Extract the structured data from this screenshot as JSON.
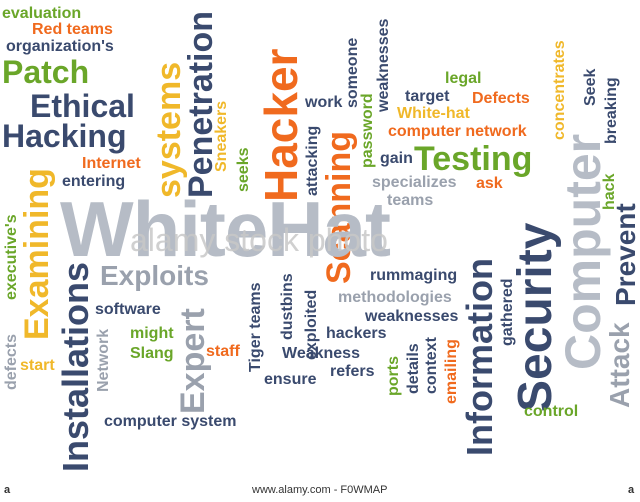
{
  "colors": {
    "navy": "#3a4a6e",
    "orange": "#f06a1e",
    "green": "#6aa629",
    "gray": "#9aa1ad",
    "yellow": "#f0b82a",
    "lightgray": "#b6bcc6",
    "red": "#e04a24",
    "blue": "#4b6b9a"
  },
  "words": {
    "evaluation": "evaluation",
    "red_teams": "Red teams",
    "organizations": "organization's",
    "patch": "Patch",
    "ethical": "Ethical",
    "hacking": "Hacking",
    "internet": "Internet",
    "entering": "entering",
    "penetration": "Penetration",
    "systems": "systems",
    "sneakers": "Sneakers",
    "seeks": "seeks",
    "hacker": "Hacker",
    "work": "work",
    "attacking": "attacking",
    "scanning": "Scanning",
    "weaknesses_v": "weaknesses",
    "someone": "someone",
    "password": "password",
    "legal": "legal",
    "target": "target",
    "defects": "Defects",
    "white_hat_small": "White-hat",
    "computer_network": "computer network",
    "gain": "gain",
    "testing": "Testing",
    "concentrates": "concentrates",
    "seek": "Seek",
    "breaking": "breaking",
    "specializes": "specializes",
    "ask": "ask",
    "teams": "teams",
    "computer": "Computer",
    "hack": "hack",
    "prevent": "Prevent",
    "white_hat": "WhiteHat",
    "executives": "executive's",
    "examining": "Examining",
    "exploits": "Exploits",
    "installations": "Installations",
    "defects_v": "defects",
    "start": "start",
    "software": "software",
    "network": "Network",
    "might": "might",
    "slang": "Slang",
    "expert": "Expert",
    "staff": "staff",
    "tiger_teams": "Tiger teams",
    "dustbins": "dustbins",
    "exploited": "exploited",
    "rummaging": "rummaging",
    "methodologies": "methodologies",
    "weaknesses": "weaknesses",
    "hackers": "hackers",
    "weakness": "Weakness",
    "refers": "refers",
    "ensure": "ensure",
    "ports": "ports",
    "details": "details",
    "context": "context",
    "emailing": "emailing",
    "information": "Information",
    "gathered": "gathered",
    "security": "Security",
    "attack": "Attack",
    "control": "control",
    "computer_system": "computer system"
  },
  "watermark": "alamy stock photo",
  "footer": {
    "left": "a",
    "center": "www.alamy.com - F0WMAP",
    "right": "a"
  }
}
